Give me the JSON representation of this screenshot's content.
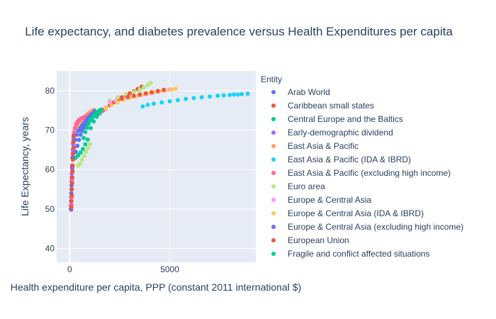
{
  "chart_data": {
    "type": "scatter",
    "title": "Life expectancy, and diabetes prevalence versus Health Expenditures per capita",
    "xlabel": "Health expenditure per capita, PPP (constant 2011 international $)",
    "ylabel": "Life Expectancy, years",
    "xlim": [
      -650,
      9300
    ],
    "ylim": [
      36.5,
      85
    ],
    "x_ticks": [
      0,
      5000
    ],
    "x_tick_labels": [
      "0",
      "5000"
    ],
    "y_ticks": [
      40,
      50,
      60,
      70,
      80
    ],
    "y_tick_labels": [
      "40",
      "50",
      "60",
      "70",
      "80"
    ],
    "grid": true,
    "legend": {
      "title": "Entity",
      "position": "right"
    },
    "series": [
      {
        "name": "Arab World",
        "color": "#636efa",
        "x": [
          300,
          380,
          460,
          540,
          620,
          700,
          780,
          850,
          920,
          1000,
          1080,
          1150
        ],
        "y": [
          64.5,
          66.0,
          67.5,
          68.8,
          69.8,
          70.6,
          71.2,
          71.9,
          72.6,
          73.3,
          74.1,
          74.6
        ]
      },
      {
        "name": "Caribbean small states",
        "color": "#ef553b",
        "x": [
          1400,
          1600,
          1800,
          2000,
          2200,
          2400,
          2600,
          2800,
          3000,
          3200,
          3400,
          3600
        ],
        "y": [
          74.0,
          74.8,
          75.6,
          76.3,
          77.0,
          77.7,
          78.3,
          78.8,
          79.3,
          79.8,
          80.4,
          81.0
        ]
      },
      {
        "name": "Central Europe and the Baltics",
        "color": "#00cc96",
        "x": [
          300,
          420,
          540,
          660,
          780,
          900,
          1050,
          1200,
          1350,
          1500,
          1650,
          1800
        ],
        "y": [
          63.0,
          63.6,
          64.3,
          65.2,
          66.4,
          67.6,
          70.5,
          72.2,
          73.4,
          74.2,
          74.9,
          75.5
        ]
      },
      {
        "name": "Early-demographic dividend",
        "color": "#ab63fa",
        "x": [
          60,
          70,
          80,
          90,
          100,
          110,
          130,
          150,
          170,
          190,
          210,
          240
        ],
        "y": [
          51.0,
          53.0,
          55.0,
          57.0,
          59.0,
          61.0,
          63.0,
          65.0,
          66.5,
          67.8,
          68.8,
          69.6
        ]
      },
      {
        "name": "East Asia & Pacific",
        "color": "#ffa15a",
        "x": [
          300,
          400,
          500,
          600,
          700,
          800,
          900,
          1000,
          1100,
          1200
        ],
        "y": [
          70.0,
          71.0,
          71.8,
          72.5,
          73.1,
          73.6,
          74.1,
          74.5,
          74.8,
          75.1
        ]
      },
      {
        "name": "East Asia & Pacific (IDA & IBRD)",
        "color": "#19d3f3",
        "x": [
          3650,
          3900,
          4200,
          4600,
          5000,
          5400,
          5800,
          6200,
          6600,
          7000,
          7400,
          7700,
          8000,
          8200,
          8400,
          8600,
          8900
        ],
        "y": [
          76.0,
          76.4,
          76.7,
          77.0,
          77.3,
          77.6,
          77.9,
          78.1,
          78.3,
          78.5,
          78.7,
          78.8,
          78.9,
          79.0,
          79.0,
          79.1,
          79.2
        ]
      },
      {
        "name": "East Asia & Pacific (excluding high income)",
        "color": "#ff6692",
        "x": [
          80,
          90,
          100,
          110,
          120,
          130,
          150,
          180,
          210,
          260,
          320,
          400,
          500,
          600,
          700,
          800,
          900,
          1000,
          1100,
          1200,
          1300,
          1400,
          1500,
          1600,
          1700,
          1800
        ],
        "y": [
          49.8,
          51.0,
          53.0,
          55.0,
          57.5,
          60.0,
          64.0,
          67.0,
          69.0,
          70.5,
          71.5,
          72.2,
          72.7,
          73.0,
          73.2,
          73.4,
          73.6,
          73.8,
          74.0,
          74.2,
          74.4,
          74.6,
          74.8,
          75.0,
          75.2,
          75.4
        ]
      },
      {
        "name": "Euro area",
        "color": "#b6e880",
        "x": [
          420,
          520,
          620,
          720,
          820,
          920,
          1020,
          2000,
          2400,
          2800,
          3200,
          3500,
          3700,
          3900,
          4050
        ],
        "y": [
          61.0,
          61.5,
          62.5,
          63.5,
          64.5,
          65.5,
          66.5,
          77.5,
          78.3,
          79.0,
          79.6,
          80.2,
          80.8,
          81.4,
          82.0
        ]
      },
      {
        "name": "Europe & Central Asia",
        "color": "#ff97ff",
        "x": [
          2000,
          2300,
          2600,
          2900,
          3200,
          3500,
          3800,
          4100,
          4400,
          4700,
          5000
        ],
        "y": [
          77.0,
          77.4,
          77.8,
          78.2,
          78.5,
          78.8,
          79.1,
          79.4,
          79.7,
          80.0,
          80.3
        ]
      },
      {
        "name": "Europe & Central Asia (IDA & IBRD)",
        "color": "#fecb52",
        "x": [
          1800,
          2100,
          2400,
          2700,
          3000,
          3300,
          3600,
          3900,
          4200,
          4500,
          4800,
          5100,
          5300
        ],
        "y": [
          75.5,
          76.3,
          77.0,
          77.6,
          78.1,
          78.5,
          78.9,
          79.2,
          79.5,
          79.8,
          80.1,
          80.3,
          80.5
        ]
      },
      {
        "name": "Europe & Central Asia (excluding high income)",
        "color": "#636efa",
        "x": [
          60,
          70,
          80,
          90,
          100,
          120,
          150,
          200,
          260,
          340,
          430,
          520,
          620,
          720,
          820,
          920,
          1020,
          1120,
          1250
        ],
        "y": [
          50.0,
          52.0,
          54.0,
          56.0,
          58.0,
          60.5,
          63.0,
          65.5,
          67.5,
          68.8,
          69.8,
          70.5,
          71.2,
          71.8,
          72.4,
          73.0,
          73.6,
          74.2,
          74.8
        ]
      },
      {
        "name": "European Union",
        "color": "#ef553b",
        "x": [
          80,
          90,
          100,
          110,
          120,
          130,
          140,
          150,
          160,
          170,
          180,
          190,
          200,
          2600,
          2900,
          3200,
          3500,
          3800,
          4100,
          4400,
          4700
        ],
        "y": [
          50.5,
          52.0,
          53.5,
          55.0,
          56.5,
          58.0,
          59.5,
          61.0,
          62.5,
          64.0,
          65.5,
          67.0,
          68.5,
          78.0,
          78.4,
          78.7,
          79.0,
          79.3,
          79.6,
          79.9,
          80.2
        ]
      },
      {
        "name": "Fragile and conflict affected situations",
        "color": "#00cc96",
        "x": [
          700,
          780,
          860,
          940,
          1020,
          1100,
          1180,
          1260,
          1340,
          1420,
          1500,
          1580
        ],
        "y": [
          68.0,
          69.5,
          70.6,
          71.6,
          72.4,
          73.0,
          73.5,
          74.0,
          74.4,
          74.7,
          75.0,
          75.2
        ]
      }
    ]
  }
}
